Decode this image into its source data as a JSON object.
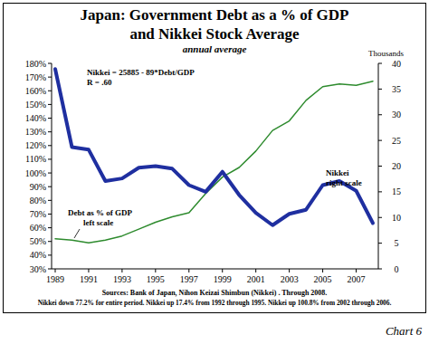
{
  "chart_data": {
    "type": "line",
    "title": [
      "Japan: Government Debt as a % of GDP",
      "and Nikkei Stock Average"
    ],
    "subtitle": "annual average",
    "y2label": "Thousands",
    "categories": [
      "1989",
      null,
      "1991",
      null,
      "1993",
      null,
      "1995",
      null,
      "1997",
      null,
      "1999",
      null,
      "2001",
      null,
      "2003",
      null,
      "2005",
      null,
      "2007",
      null
    ],
    "series": [
      {
        "name": "Debt as % of GDP",
        "color": "#2e8b2e",
        "axis": "y",
        "values": [
          52,
          51,
          49,
          51,
          54,
          59,
          64,
          68,
          71,
          85,
          97,
          104,
          116,
          131,
          138,
          153,
          163,
          165,
          164,
          167
        ]
      },
      {
        "name": "Nikkei",
        "color": "#1f2fa0",
        "axis": "y2",
        "values": [
          38.9,
          23.7,
          23.2,
          17.1,
          17.6,
          19.7,
          20.0,
          19.5,
          16.3,
          15.0,
          18.9,
          14.4,
          10.9,
          8.5,
          10.7,
          11.5,
          16.3,
          17.1,
          15.2,
          8.9
        ]
      }
    ],
    "ylim": [
      30,
      180
    ],
    "yticks": [
      {
        "value": 30,
        "label": "30%"
      },
      {
        "value": 40,
        "label": "40%"
      },
      {
        "value": 50,
        "label": "50%"
      },
      {
        "value": 60,
        "label": "60%"
      },
      {
        "value": 70,
        "label": "70%"
      },
      {
        "value": 80,
        "label": "80%"
      },
      {
        "value": 90,
        "label": "90%"
      },
      {
        "value": 100,
        "label": "100%"
      },
      {
        "value": 110,
        "label": "110%"
      },
      {
        "value": 120,
        "label": "120%"
      },
      {
        "value": 130,
        "label": "130%"
      },
      {
        "value": 140,
        "label": "140%"
      },
      {
        "value": 150,
        "label": "150%"
      },
      {
        "value": 160,
        "label": "160%"
      },
      {
        "value": 170,
        "label": "170%"
      },
      {
        "value": 180,
        "label": "180%"
      }
    ],
    "y2lim": [
      0,
      40
    ],
    "y2ticks": [
      0,
      5,
      10,
      15,
      20,
      25,
      30,
      35,
      40
    ],
    "grid": false,
    "annotations": [
      "Nikkei = 25885 - 89*Debt/GDP",
      "R = .60",
      "left scale",
      "right scale"
    ],
    "notes": [
      "Sources: Bank of Japan, Nihon Keizai Shimbun (Nikkei) . Through 2008.",
      "Nikkei down 77.2% for entire period. Nikkei up 17.4% from 1992 through 1995. Nikkei up 100.8% from 2002 through 2006."
    ],
    "chart_label": "Chart 6"
  }
}
